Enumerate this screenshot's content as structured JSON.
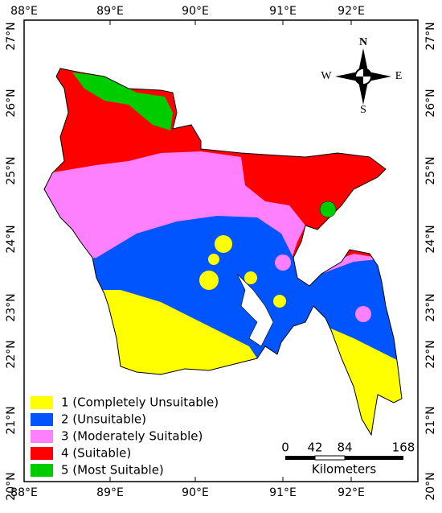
{
  "top_axis": {
    "labels": [
      "88°E",
      "89°E",
      "90°E",
      "91°E",
      "92°E"
    ]
  },
  "bottom_axis": {
    "labels": [
      "88°E",
      "89°E",
      "90°E",
      "91°E",
      "92°E"
    ]
  },
  "left_axis": {
    "labels": [
      "27°N",
      "26°N",
      "25°N",
      "24°N",
      "23°N",
      "22°N",
      "21°N",
      "20°N"
    ]
  },
  "right_axis": {
    "labels": [
      "27°N",
      "26°N",
      "25°N",
      "24°N",
      "23°N",
      "22°N",
      "21°N",
      "20°N"
    ]
  },
  "compass": {
    "north": "N",
    "south": "S",
    "east": "E",
    "west": "W"
  },
  "legend": {
    "items": [
      "1 (Completely Unsuitable)",
      "2 (Unsuitable)",
      "3 (Moderately Suitable)",
      "4 (Suitable)",
      "5 (Most Suitable)"
    ]
  },
  "scale_bar": {
    "ticks": [
      0,
      42,
      84,
      168
    ],
    "unit": "Kilometers"
  }
}
